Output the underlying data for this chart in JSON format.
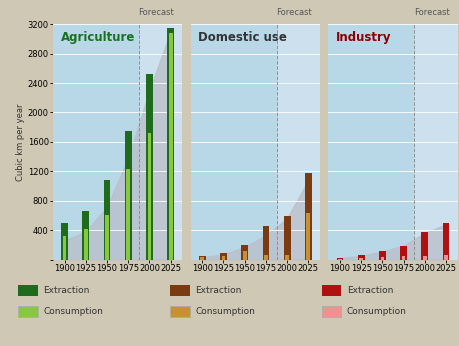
{
  "background_color": "#cec8b4",
  "panel_bg_color": "#b8d8e8",
  "forecast_bg_color": "#cce0ee",
  "title_y": "Cubic km per year",
  "ylim": [
    0,
    3200
  ],
  "yticks": [
    0,
    400,
    800,
    1200,
    1600,
    2000,
    2400,
    2800,
    3200
  ],
  "years": [
    1900,
    1925,
    1950,
    1975,
    2000,
    2025
  ],
  "panels": [
    {
      "title": "Agriculture",
      "title_color": "#1a7020",
      "extraction_color": "#1e6b1e",
      "consumption_color": "#88c840",
      "extraction": [
        490,
        660,
        1080,
        1750,
        2520,
        3150
      ],
      "consumption": [
        320,
        420,
        600,
        1230,
        1720,
        3080
      ],
      "shadow_x": [
        0,
        1,
        2,
        3,
        4,
        5
      ],
      "shadow_y": [
        260,
        380,
        720,
        1380,
        2300,
        3100
      ],
      "forecast_from_idx": 4
    },
    {
      "title": "Domestic use",
      "title_color": "#333333",
      "extraction_color": "#7a3b10",
      "consumption_color": "#c89030",
      "extraction": [
        50,
        85,
        200,
        460,
        590,
        1170
      ],
      "consumption": [
        30,
        50,
        110,
        65,
        65,
        630
      ],
      "shadow_x": [
        0,
        1,
        2,
        3,
        4,
        5
      ],
      "shadow_y": [
        30,
        70,
        170,
        330,
        560,
        1080
      ],
      "forecast_from_idx": 4
    },
    {
      "title": "Industry",
      "title_color": "#8b0000",
      "extraction_color": "#b01010",
      "consumption_color": "#f09090",
      "extraction": [
        25,
        55,
        110,
        190,
        375,
        490
      ],
      "consumption": [
        8,
        15,
        35,
        45,
        45,
        55
      ],
      "shadow_x": [
        0,
        1,
        2,
        3,
        4,
        5
      ],
      "shadow_y": [
        20,
        50,
        110,
        190,
        360,
        480
      ],
      "forecast_from_idx": 4
    }
  ]
}
